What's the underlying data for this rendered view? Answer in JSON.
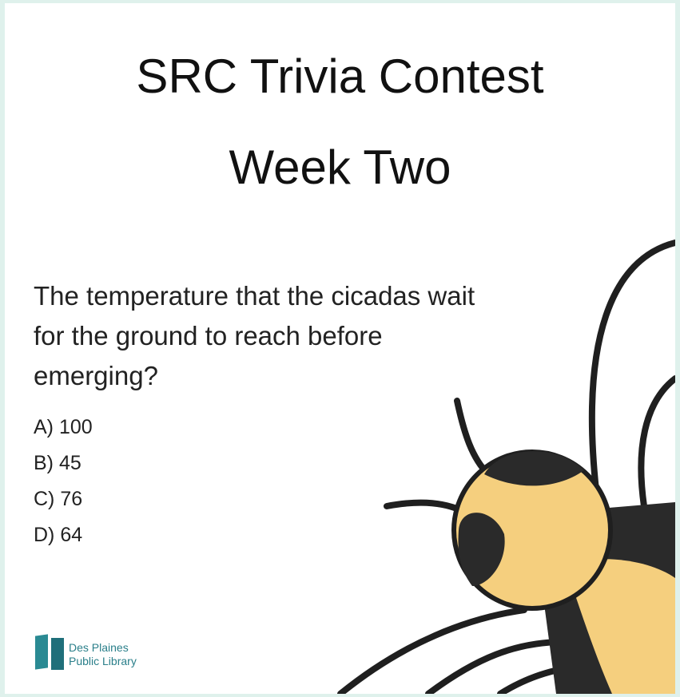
{
  "header": {
    "title_lines": [
      "SRC Trivia Contest",
      "Week Two"
    ]
  },
  "question": {
    "lines": [
      "The temperature that the cicadas wait",
      "for the ground to reach before",
      "emerging?"
    ]
  },
  "options": [
    "A) 100",
    "B) 45",
    "C) 76",
    "D) 64"
  ],
  "logo": {
    "lines": [
      "Des Plaines",
      "Public Library"
    ]
  }
}
